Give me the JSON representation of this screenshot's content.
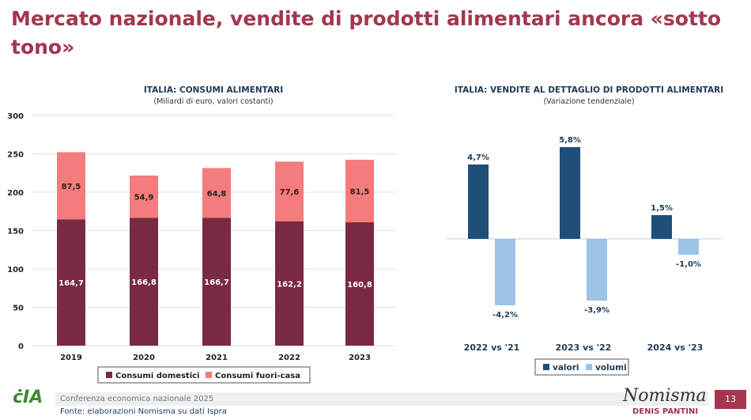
{
  "title": "Mercato nazionale, vendite di prodotti alimentari ancora «sotto tono»",
  "chart_data": [
    {
      "type": "bar",
      "stacked": true,
      "title": "ITALIA: CONSUMI ALIMENTARI",
      "subtitle": "(Miliardi di euro, valori costanti)",
      "categories": [
        "2019",
        "2020",
        "2021",
        "2022",
        "2023"
      ],
      "series": [
        {
          "name": "Consumi domestici",
          "values": [
            164.7,
            166.8,
            166.7,
            162.2,
            160.8
          ],
          "labels": [
            "164,7",
            "166,8",
            "166,7",
            "162,2",
            "160,8"
          ],
          "color": "#7a2a40"
        },
        {
          "name": "Consumi fuori-casa",
          "values": [
            87.5,
            54.9,
            64.8,
            77.6,
            81.5
          ],
          "labels": [
            "87,5",
            "54,9",
            "64,8",
            "77,6",
            "81,5"
          ],
          "color": "#f47c7c"
        }
      ],
      "yticks": [
        "0",
        "50",
        "100",
        "150",
        "200",
        "250",
        "300"
      ],
      "ylim": [
        0,
        300
      ],
      "grid": true,
      "legend": "bottom"
    },
    {
      "type": "bar",
      "title": "ITALIA: VENDITE AL DETTAGLIO DI PRODOTTI ALIMENTARI",
      "subtitle": "(Variazione tendenziale)",
      "categories": [
        "2022 vs '21",
        "2023 vs '22",
        "2024 vs '23"
      ],
      "series": [
        {
          "name": "valori",
          "values": [
            4.7,
            5.8,
            1.5
          ],
          "labels": [
            "4,7%",
            "5,8%",
            "1,5%"
          ],
          "color": "#1f4e79"
        },
        {
          "name": "volumi",
          "values": [
            -4.2,
            -3.9,
            -1.0
          ],
          "labels": [
            "-4,2%",
            "-3,9%",
            "-1,0%"
          ],
          "color": "#9dc3e6"
        }
      ],
      "grid": false,
      "legend": "bottom"
    }
  ],
  "footer": {
    "conference": "Conferenza economica nazionale 2025",
    "source": "Fonte: elaborazioni Nomisma su dati Ispra",
    "brand": "Nomisma",
    "author": "DENIS PANTINI",
    "page": "13",
    "logo": "CIA"
  }
}
